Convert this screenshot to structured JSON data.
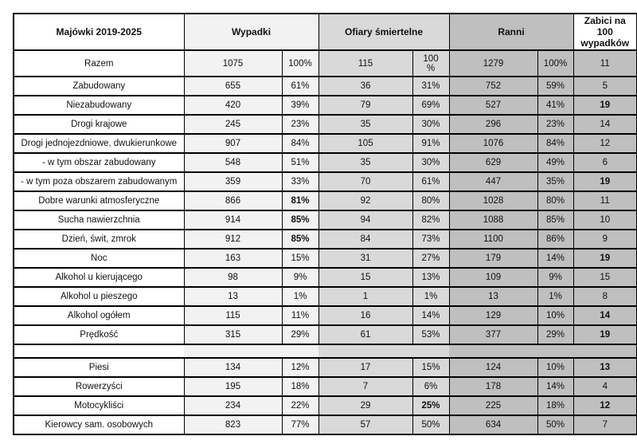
{
  "table": {
    "headers": {
      "label": "Majówki 2019-2025",
      "wypadki": "Wypadki",
      "ofiary": "Ofiary śmiertelne",
      "ranni": "Ranni",
      "zabici": "Zabici na 100 wypadków"
    },
    "colors": {
      "wypadki_bg": "#f2f2f2",
      "ofiary_bg": "#d9d9d9",
      "ranni_bg": "#bfbfbf",
      "zabici_bg": "#bfbfbf",
      "border": "#000000"
    },
    "rows": [
      {
        "label": "Razem",
        "cells": [
          "1075",
          "100%",
          "115",
          "100\n%",
          "1279",
          "100%",
          "11"
        ],
        "bold": [],
        "tall": true
      },
      {
        "label": "Zabudowany",
        "cells": [
          "655",
          "61%",
          "36",
          "31%",
          "752",
          "59%",
          "5"
        ],
        "bold": []
      },
      {
        "label": "Niezabudowany",
        "cells": [
          "420",
          "39%",
          "79",
          "69%",
          "527",
          "41%",
          "19"
        ],
        "bold": [
          6
        ]
      },
      {
        "label": "Drogi krajowe",
        "cells": [
          "245",
          "23%",
          "35",
          "30%",
          "296",
          "23%",
          "14"
        ],
        "bold": []
      },
      {
        "label": "Drogi jednojezdniowe, dwukierunkowe",
        "cells": [
          "907",
          "84%",
          "105",
          "91%",
          "1076",
          "84%",
          "12"
        ],
        "bold": []
      },
      {
        "label": "- w tym obszar zabudowany",
        "cells": [
          "548",
          "51%",
          "35",
          "30%",
          "629",
          "49%",
          "6"
        ],
        "bold": []
      },
      {
        "label": "- w tym poza obszarem zabudowanym",
        "cells": [
          "359",
          "33%",
          "70",
          "61%",
          "447",
          "35%",
          "19"
        ],
        "bold": [
          6
        ]
      },
      {
        "label": "Dobre warunki atmosferyczne",
        "cells": [
          "866",
          "81%",
          "92",
          "80%",
          "1028",
          "80%",
          "11"
        ],
        "bold": [
          1
        ]
      },
      {
        "label": "Sucha nawierzchnia",
        "cells": [
          "914",
          "85%",
          "94",
          "82%",
          "1088",
          "85%",
          "10"
        ],
        "bold": [
          1
        ]
      },
      {
        "label": "Dzień, świt, zmrok",
        "cells": [
          "912",
          "85%",
          "84",
          "73%",
          "1100",
          "86%",
          "9"
        ],
        "bold": [
          1
        ]
      },
      {
        "label": "Noc",
        "cells": [
          "163",
          "15%",
          "31",
          "27%",
          "179",
          "14%",
          "19"
        ],
        "bold": [
          6
        ]
      },
      {
        "label": "Alkohol u kierującego",
        "cells": [
          "98",
          "9%",
          "15",
          "13%",
          "109",
          "9%",
          "15"
        ],
        "bold": []
      },
      {
        "label": "Alkohol u pieszego",
        "cells": [
          "13",
          "1%",
          "1",
          "1%",
          "13",
          "1%",
          "8"
        ],
        "bold": []
      },
      {
        "label": "Alkohol ogółem",
        "cells": [
          "115",
          "11%",
          "16",
          "14%",
          "129",
          "10%",
          "14"
        ],
        "bold": [
          6
        ]
      },
      {
        "label": "Prędkość",
        "cells": [
          "315",
          "29%",
          "61",
          "53%",
          "377",
          "29%",
          "19"
        ],
        "bold": [
          6
        ]
      },
      {
        "type": "spacer"
      },
      {
        "label": "Piesi",
        "cells": [
          "134",
          "12%",
          "17",
          "15%",
          "124",
          "10%",
          "13"
        ],
        "bold": [
          6
        ]
      },
      {
        "label": "Rowerzyści",
        "cells": [
          "195",
          "18%",
          "7",
          "6%",
          "178",
          "14%",
          "4"
        ],
        "bold": []
      },
      {
        "label": "Motocykliści",
        "cells": [
          "234",
          "22%",
          "29",
          "25%",
          "225",
          "18%",
          "12"
        ],
        "bold": [
          3,
          6
        ]
      },
      {
        "label": "Kierowcy sam. osobowych",
        "cells": [
          "823",
          "77%",
          "57",
          "50%",
          "634",
          "50%",
          "7"
        ],
        "bold": []
      }
    ]
  }
}
